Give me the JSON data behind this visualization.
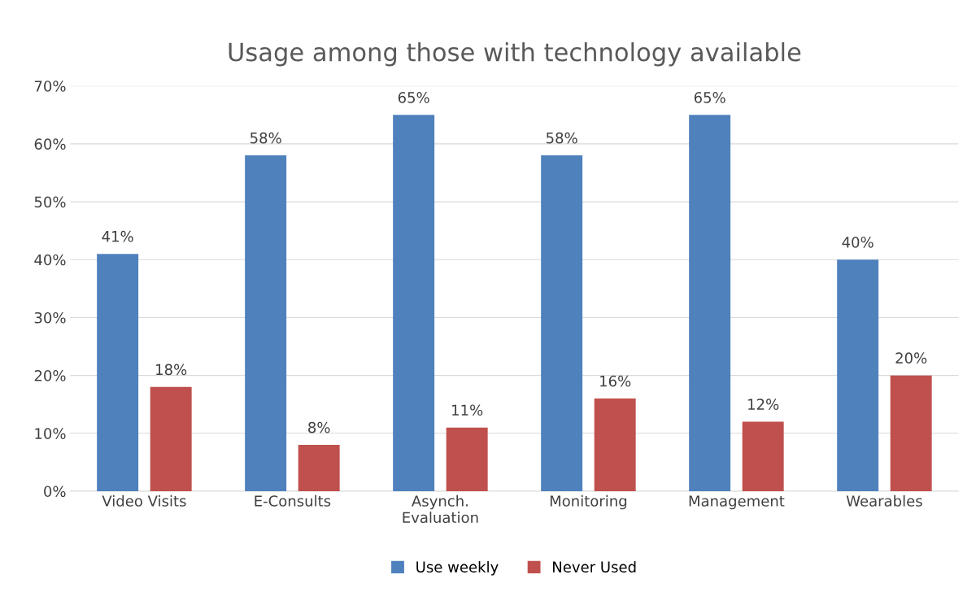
{
  "chart_data": {
    "type": "bar",
    "title": "Usage among those with technology available",
    "categories": [
      "Video Visits",
      "E-Consults",
      "Asynch.\nEvaluation",
      "Monitoring",
      "Management",
      "Wearables"
    ],
    "series": [
      {
        "name": "Use weekly",
        "color": "#4f81bd",
        "values": [
          41,
          58,
          65,
          58,
          65,
          40
        ],
        "value_labels": [
          "41%",
          "58%",
          "65%",
          "58%",
          "65%",
          "40%"
        ]
      },
      {
        "name": "Never Used",
        "color": "#c0504d",
        "values": [
          18,
          8,
          11,
          16,
          12,
          20
        ],
        "value_labels": [
          "18%",
          "8%",
          "11%",
          "16%",
          "12%",
          "20%"
        ]
      }
    ],
    "ylim": [
      0,
      70
    ],
    "yticks": [
      {
        "value": 0,
        "label": "0%"
      },
      {
        "value": 10,
        "label": "10%"
      },
      {
        "value": 20,
        "label": "20%"
      },
      {
        "value": 30,
        "label": "30%"
      },
      {
        "value": 40,
        "label": "40%"
      },
      {
        "value": 50,
        "label": "50%"
      },
      {
        "value": 60,
        "label": "60%"
      },
      {
        "value": 70,
        "label": "70%"
      }
    ],
    "grid": "y",
    "legend": "bottom"
  }
}
